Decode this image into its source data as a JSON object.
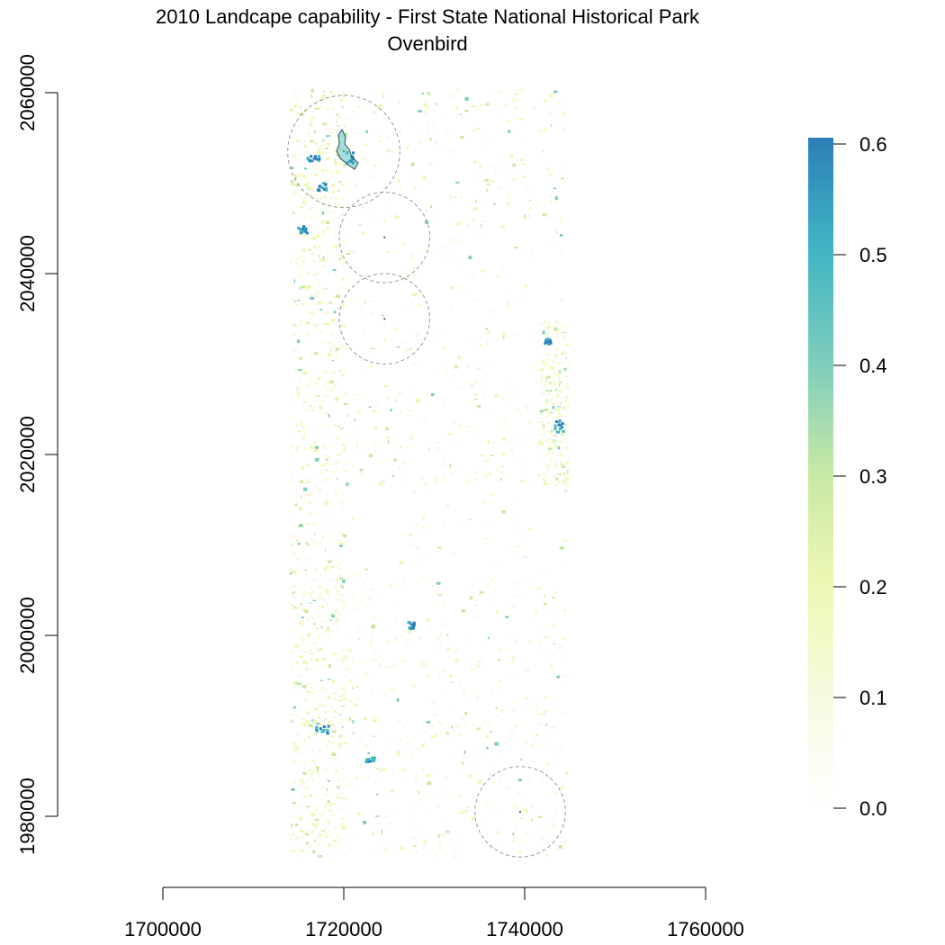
{
  "map": {
    "title": "2010 Landcape capability - First State National Historical Park",
    "subtitle": "Ovenbird",
    "x_axis": {
      "ticks": [
        "1700000",
        "1720000",
        "1740000",
        "1760000"
      ],
      "range": [
        1700000,
        1760000
      ]
    },
    "y_axis": {
      "ticks": [
        "1980000",
        "2000000",
        "2020000",
        "2040000",
        "2060000"
      ],
      "range": [
        1980000,
        2060000
      ]
    },
    "extent": {
      "x": [
        1714000,
        1744500
      ],
      "y": [
        1975500,
        2060500
      ]
    },
    "legend": {
      "placement": "right",
      "ticks": [
        "0.0",
        "0.1",
        "0.2",
        "0.3",
        "0.4",
        "0.5",
        "0.6"
      ],
      "range": [
        0,
        0.6
      ],
      "colors": [
        "#ffffff",
        "#f5fbe0",
        "#eef8b4",
        "#c7e9a4",
        "#7fcdbb",
        "#41b6c4",
        "#2c7fb8"
      ]
    },
    "buffer_circles": [
      {
        "cx": 1720000,
        "cy": 2053500,
        "r": 6200
      },
      {
        "cx": 1724500,
        "cy": 2044000,
        "r": 5000
      },
      {
        "cx": 1724500,
        "cy": 2035000,
        "r": 5000
      },
      {
        "cx": 1739500,
        "cy": 1980500,
        "r": 5000
      }
    ],
    "accent_colors": {
      "axis": "#000000",
      "buffer": "#999999",
      "park_outline": "#2f4f4f"
    }
  }
}
